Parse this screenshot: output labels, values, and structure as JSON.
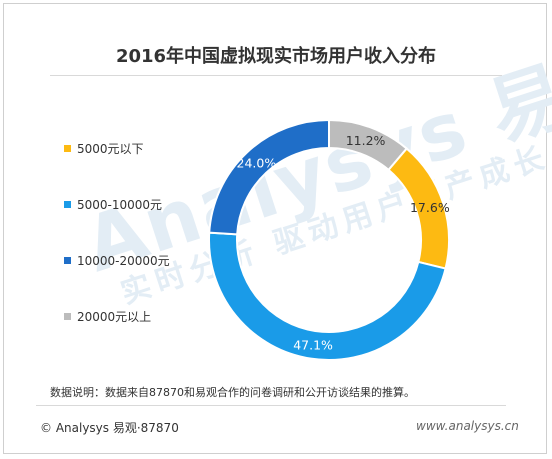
{
  "watermark": {
    "brand": "Analysys 易观",
    "slogan": "实时分析 驱动用户资产成长"
  },
  "chart_data": {
    "type": "pie",
    "variant": "donut",
    "title": "2016年中国虚拟现实市场用户收入分布",
    "legend_position": "left",
    "unit": "%",
    "categories": [
      "5000元以下",
      "5000-10000元",
      "10000-20000元",
      "20000元以上"
    ],
    "values": [
      17.6,
      47.1,
      24.0,
      11.2
    ],
    "labels": [
      "17.6%",
      "47.1%",
      "24.0%",
      "11.2%"
    ],
    "colors": [
      "#FDBA12",
      "#1A9BE8",
      "#1F6EC8",
      "#BCBCBC"
    ],
    "label_colors": [
      "#333333",
      "#ffffff",
      "#ffffff",
      "#333333"
    ],
    "start_category": "20000元以上",
    "direction": "clockwise"
  },
  "notes": "数据说明：数据来自87870和易观合作的问卷调研和公开访谈结果的推算。",
  "footer": {
    "copyright": "© Analysys 易观·87870",
    "site": "www.analysys.cn"
  }
}
